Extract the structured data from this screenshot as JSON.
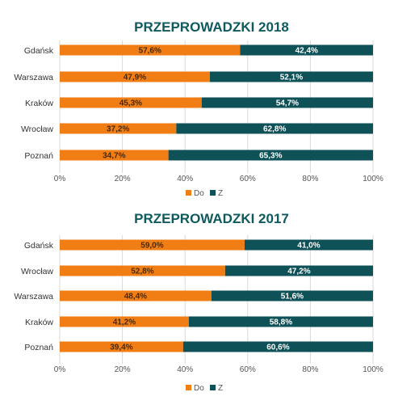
{
  "colors": {
    "do": "#f07e14",
    "z": "#0e5258",
    "title": "#0e5a5f",
    "grid": "#d9d9d9"
  },
  "chart_data": [
    {
      "type": "bar",
      "stacked": "100%",
      "orientation": "horizontal",
      "title": "PRZEPROWADZKI 2018",
      "categories": [
        "Gdańsk",
        "Warszawa",
        "Kraków",
        "Wrocław",
        "Poznań"
      ],
      "series": [
        {
          "name": "Do",
          "values": [
            57.6,
            47.9,
            45.3,
            37.2,
            34.7
          ],
          "labels": [
            "57,6%",
            "47,9%",
            "45,3%",
            "37,2%",
            "34,7%"
          ]
        },
        {
          "name": "Z",
          "values": [
            42.4,
            52.1,
            54.7,
            62.8,
            65.3
          ],
          "labels": [
            "42,4%",
            "52,1%",
            "54,7%",
            "62,8%",
            "65,3%"
          ]
        }
      ],
      "xticks": [
        "0%",
        "20%",
        "40%",
        "60%",
        "80%",
        "100%"
      ],
      "xlim": [
        0,
        100
      ],
      "grid": true,
      "legend": "bottom-center"
    },
    {
      "type": "bar",
      "stacked": "100%",
      "orientation": "horizontal",
      "title": "PRZEPROWADZKI 2017",
      "categories": [
        "Gdańsk",
        "Wrocław",
        "Warszawa",
        "Kraków",
        "Poznań"
      ],
      "series": [
        {
          "name": "Do",
          "values": [
            59.0,
            52.8,
            48.4,
            41.2,
            39.4
          ],
          "labels": [
            "59,0%",
            "52,8%",
            "48,4%",
            "41,2%",
            "39,4%"
          ]
        },
        {
          "name": "Z",
          "values": [
            41.0,
            47.2,
            51.6,
            58.8,
            60.6
          ],
          "labels": [
            "41,0%",
            "47,2%",
            "51,6%",
            "58,8%",
            "60,6%"
          ]
        }
      ],
      "xticks": [
        "0%",
        "20%",
        "40%",
        "60%",
        "80%",
        "100%"
      ],
      "xlim": [
        0,
        100
      ],
      "grid": true,
      "legend": "bottom-center"
    }
  ]
}
